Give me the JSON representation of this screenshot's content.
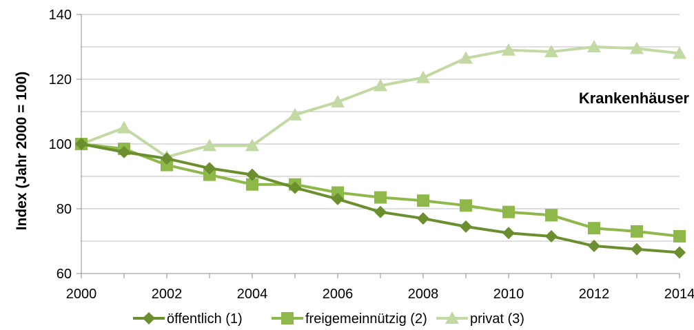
{
  "chart_data": {
    "type": "line",
    "title": "",
    "xlabel": "",
    "ylabel": "Index (Jahr 2000 = 100)",
    "annotation": "Krankenhäuser",
    "xlim": [
      2000,
      2014
    ],
    "ylim": [
      60,
      140
    ],
    "x_ticks": [
      "2000",
      "2002",
      "2004",
      "2006",
      "2008",
      "2010",
      "2012",
      "2014"
    ],
    "y_ticks": [
      "60",
      "80",
      "100",
      "120",
      "140"
    ],
    "gridlines": "horizontal",
    "legend_position": "bottom",
    "x": [
      2000,
      2001,
      2002,
      2003,
      2004,
      2005,
      2006,
      2007,
      2008,
      2009,
      2010,
      2011,
      2012,
      2013,
      2014
    ],
    "series": [
      {
        "name": "öffentlich (1)",
        "color": "#6b8e2f",
        "marker": "diamond",
        "values": [
          100,
          97.5,
          95.5,
          92.5,
          90.5,
          86.5,
          83,
          79,
          77,
          74.5,
          72.5,
          71.5,
          68.5,
          67.5,
          66.5
        ]
      },
      {
        "name": "freigemeinnützig (2)",
        "color": "#8fb84a",
        "marker": "square",
        "values": [
          100,
          98.5,
          93.5,
          90.5,
          87.5,
          87.5,
          85,
          83.5,
          82.5,
          81,
          79,
          78,
          74,
          73,
          71.5
        ]
      },
      {
        "name": "privat (3)",
        "color": "#c2d9a4",
        "marker": "triangle",
        "values": [
          100,
          105,
          96,
          99.5,
          99.5,
          109,
          113,
          118,
          120.5,
          126.5,
          129,
          128.5,
          130,
          129.5,
          128
        ]
      }
    ]
  }
}
